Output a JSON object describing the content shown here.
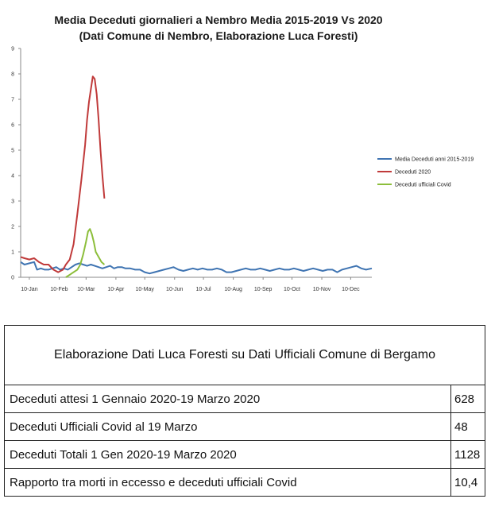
{
  "chart_data": {
    "type": "line",
    "title": "Media Deceduti giornalieri a Nembro Media 2015-2019 Vs 2020",
    "subtitle": "(Dati Comune di Nembro, Elaborazione Luca Foresti)",
    "x_tick_labels": [
      "10-Jan",
      "10-Feb",
      "10-Mar",
      "10-Apr",
      "10-May",
      "10-Jun",
      "10-Jul",
      "10-Aug",
      "10-Sep",
      "10-Oct",
      "10-Nov",
      "10-Dec"
    ],
    "x_tick_days": [
      10,
      41,
      69,
      100,
      130,
      161,
      191,
      222,
      253,
      283,
      314,
      344
    ],
    "x_range_days": [
      1,
      366
    ],
    "y_ticks": [
      "0",
      "1",
      "2",
      "3",
      "4",
      "5",
      "6",
      "7",
      "8",
      "9"
    ],
    "ylim": [
      0,
      9
    ],
    "grid": false,
    "legend_position": "right",
    "series": [
      {
        "name": "Media Deceduti anni 2015-2019",
        "color": "#3f74b2",
        "x": [
          1,
          5,
          10,
          15,
          18,
          22,
          26,
          30,
          34,
          38,
          42,
          46,
          50,
          54,
          58,
          62,
          66,
          70,
          74,
          78,
          82,
          86,
          90,
          94,
          98,
          102,
          106,
          110,
          115,
          120,
          125,
          130,
          135,
          140,
          145,
          150,
          155,
          160,
          165,
          170,
          175,
          180,
          185,
          190,
          195,
          200,
          205,
          210,
          215,
          220,
          225,
          230,
          235,
          240,
          245,
          250,
          255,
          260,
          265,
          270,
          275,
          280,
          285,
          290,
          295,
          300,
          305,
          310,
          315,
          320,
          325,
          330,
          335,
          340,
          345,
          350,
          355,
          360,
          366
        ],
        "y": [
          0.6,
          0.5,
          0.55,
          0.6,
          0.3,
          0.35,
          0.3,
          0.3,
          0.35,
          0.4,
          0.3,
          0.35,
          0.3,
          0.4,
          0.5,
          0.55,
          0.5,
          0.45,
          0.5,
          0.45,
          0.4,
          0.35,
          0.4,
          0.45,
          0.35,
          0.4,
          0.4,
          0.35,
          0.35,
          0.3,
          0.3,
          0.2,
          0.15,
          0.2,
          0.25,
          0.3,
          0.35,
          0.4,
          0.3,
          0.25,
          0.3,
          0.35,
          0.3,
          0.35,
          0.3,
          0.3,
          0.35,
          0.3,
          0.2,
          0.2,
          0.25,
          0.3,
          0.35,
          0.3,
          0.3,
          0.35,
          0.3,
          0.25,
          0.3,
          0.35,
          0.3,
          0.3,
          0.35,
          0.3,
          0.25,
          0.3,
          0.35,
          0.3,
          0.25,
          0.3,
          0.3,
          0.2,
          0.3,
          0.35,
          0.4,
          0.45,
          0.35,
          0.3,
          0.35
        ]
      },
      {
        "name": "Deceduti 2020",
        "color": "#c03a3a",
        "x": [
          1,
          5,
          10,
          15,
          20,
          25,
          30,
          35,
          40,
          45,
          48,
          52,
          56,
          60,
          64,
          68,
          70,
          72,
          74,
          76,
          78,
          80,
          82,
          84,
          86,
          88
        ],
        "y": [
          0.8,
          0.75,
          0.7,
          0.75,
          0.6,
          0.5,
          0.5,
          0.3,
          0.2,
          0.3,
          0.5,
          0.7,
          1.3,
          2.5,
          3.8,
          5.2,
          6.2,
          6.9,
          7.4,
          7.9,
          7.8,
          7.2,
          6.2,
          5.0,
          4.0,
          3.1
        ]
      },
      {
        "name": "Deceduti ufficiali Covid",
        "color": "#8cbe3a",
        "x": [
          48,
          52,
          56,
          60,
          63,
          66,
          69,
          71,
          73,
          75,
          77,
          79,
          82,
          85,
          88
        ],
        "y": [
          0.0,
          0.1,
          0.2,
          0.3,
          0.5,
          0.9,
          1.4,
          1.8,
          1.9,
          1.7,
          1.4,
          1.0,
          0.8,
          0.6,
          0.5
        ]
      }
    ]
  },
  "table": {
    "header": "Elaborazione Dati Luca Foresti su Dati Ufficiali Comune di Bergamo",
    "rows": [
      {
        "label": "Deceduti attesi 1 Gennaio 2020-19 Marzo 2020",
        "value": "628"
      },
      {
        "label": "Deceduti Ufficiali Covid al 19 Marzo",
        "value": "48"
      },
      {
        "label": "Deceduti Totali 1 Gen 2020-19 Marzo 2020",
        "value": "1128"
      },
      {
        "label": "Rapporto tra morti in eccesso e deceduti ufficiali Covid",
        "value": "10,4"
      }
    ]
  }
}
